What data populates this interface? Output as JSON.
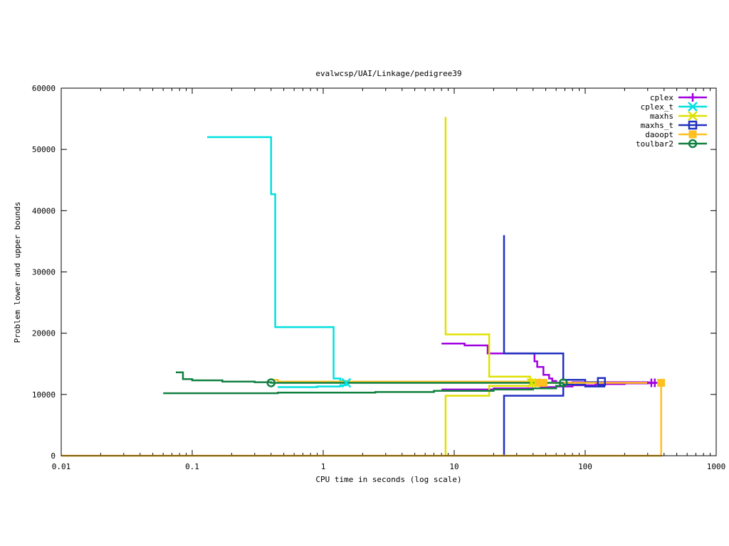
{
  "chart_data": {
    "type": "line",
    "title": "evalwcsp/UAI/Linkage/pedigree39",
    "xlabel": "CPU time in seconds (log scale)",
    "ylabel": "Problem lower and upper bounds",
    "x_scale": "log",
    "xlim": [
      0.01,
      1000
    ],
    "ylim": [
      0,
      60000
    ],
    "xticks": [
      {
        "value": 0.01,
        "label": "0.01"
      },
      {
        "value": 0.1,
        "label": "0.1"
      },
      {
        "value": 1,
        "label": "1"
      },
      {
        "value": 10,
        "label": "10"
      },
      {
        "value": 100,
        "label": "100"
      },
      {
        "value": 1000,
        "label": "1000"
      }
    ],
    "yticks": [
      {
        "value": 0,
        "label": "0"
      },
      {
        "value": 10000,
        "label": "10000"
      },
      {
        "value": 20000,
        "label": "20000"
      },
      {
        "value": 30000,
        "label": "30000"
      },
      {
        "value": 40000,
        "label": "40000"
      },
      {
        "value": 50000,
        "label": "50000"
      },
      {
        "value": 60000,
        "label": "60000"
      }
    ],
    "grid": false,
    "legend_position": "top-right",
    "series": [
      {
        "name": "cplex",
        "color": "#a000e0",
        "marker": "plus",
        "upper": [
          [
            8,
            18300
          ],
          [
            12,
            18300
          ],
          [
            12,
            18000
          ],
          [
            18,
            18000
          ],
          [
            18,
            16700
          ],
          [
            41,
            16700
          ],
          [
            41,
            15400
          ],
          [
            43,
            15400
          ],
          [
            43,
            14500
          ],
          [
            48,
            14500
          ],
          [
            48,
            13200
          ],
          [
            53,
            13200
          ],
          [
            53,
            12600
          ],
          [
            56,
            12600
          ],
          [
            56,
            12200
          ],
          [
            60,
            12200
          ],
          [
            60,
            11900
          ],
          [
            80,
            11900
          ],
          [
            80,
            12000
          ],
          [
            300,
            12000
          ],
          [
            330,
            11900
          ],
          [
            400,
            11900
          ]
        ],
        "lower": [
          [
            8,
            10800
          ],
          [
            20,
            10800
          ],
          [
            20,
            11000
          ],
          [
            45,
            11000
          ],
          [
            45,
            11200
          ],
          [
            60,
            11200
          ],
          [
            60,
            11300
          ],
          [
            80,
            11300
          ],
          [
            80,
            11500
          ],
          [
            120,
            11500
          ],
          [
            120,
            11700
          ],
          [
            200,
            11700
          ],
          [
            200,
            11800
          ],
          [
            300,
            11800
          ],
          [
            330,
            11900
          ],
          [
            400,
            11900
          ]
        ],
        "markers_at": [
          [
            320,
            11900
          ],
          [
            340,
            11900
          ]
        ]
      },
      {
        "name": "cplex_t",
        "color": "#00e0e0",
        "marker": "cross",
        "upper": [
          [
            0.13,
            52000
          ],
          [
            0.4,
            52000
          ],
          [
            0.4,
            42700
          ],
          [
            0.43,
            42700
          ],
          [
            0.43,
            21000
          ],
          [
            1.2,
            21000
          ],
          [
            1.2,
            12600
          ],
          [
            1.35,
            12600
          ],
          [
            1.35,
            12200
          ],
          [
            1.5,
            12200
          ],
          [
            1.5,
            11900
          ]
        ],
        "lower": [
          [
            0.45,
            11200
          ],
          [
            0.9,
            11200
          ],
          [
            0.9,
            11300
          ],
          [
            1.35,
            11300
          ],
          [
            1.35,
            11500
          ],
          [
            1.5,
            11500
          ],
          [
            1.5,
            11900
          ]
        ],
        "markers_at": [
          [
            1.5,
            11900
          ]
        ]
      },
      {
        "name": "maxhs",
        "color": "#e0e000",
        "marker": "cross",
        "upper": [
          [
            8.6,
            55300
          ],
          [
            8.6,
            19800
          ],
          [
            18.5,
            19800
          ],
          [
            18.5,
            12900
          ],
          [
            38,
            12900
          ],
          [
            38,
            12300
          ],
          [
            42,
            12300
          ],
          [
            42,
            11900
          ]
        ],
        "lower": [
          [
            8.6,
            0
          ],
          [
            8.6,
            9800
          ],
          [
            18.5,
            9800
          ],
          [
            18.5,
            11400
          ],
          [
            38,
            11400
          ],
          [
            38,
            11600
          ],
          [
            42,
            11600
          ],
          [
            42,
            11900
          ]
        ],
        "markers_at": [
          [
            39,
            11900
          ],
          [
            42,
            11900
          ]
        ]
      },
      {
        "name": "maxhs_t",
        "color": "#2030c0",
        "marker": "square",
        "upper": [
          [
            24,
            36000
          ],
          [
            24,
            16700
          ],
          [
            68,
            16700
          ],
          [
            68,
            12400
          ],
          [
            100,
            12400
          ],
          [
            100,
            12000
          ],
          [
            140,
            12000
          ],
          [
            140,
            11900
          ]
        ],
        "lower": [
          [
            24,
            0
          ],
          [
            24,
            9800
          ],
          [
            68,
            9800
          ],
          [
            68,
            11600
          ],
          [
            100,
            11600
          ],
          [
            100,
            11300
          ],
          [
            140,
            11300
          ],
          [
            140,
            11900
          ]
        ],
        "markers_at": [
          [
            133,
            12100
          ]
        ]
      },
      {
        "name": "daoopt",
        "color": "#ffc020",
        "marker": "filled-square",
        "upper": [
          [
            0.42,
            12400
          ],
          [
            0.45,
            12400
          ],
          [
            0.45,
            12100
          ],
          [
            48,
            12100
          ],
          [
            48,
            11900
          ],
          [
            380,
            11900
          ]
        ],
        "lower": [
          [
            0.01,
            0
          ],
          [
            380,
            0
          ],
          [
            380,
            11900
          ]
        ],
        "markers_at": [
          [
            45,
            11900
          ],
          [
            48,
            11900
          ],
          [
            380,
            11900
          ]
        ]
      },
      {
        "name": "toulbar2",
        "color": "#108040",
        "marker": "circle",
        "upper": [
          [
            0.075,
            13600
          ],
          [
            0.085,
            13600
          ],
          [
            0.085,
            12500
          ],
          [
            0.1,
            12500
          ],
          [
            0.1,
            12300
          ],
          [
            0.17,
            12300
          ],
          [
            0.17,
            12100
          ],
          [
            0.3,
            12100
          ],
          [
            0.3,
            12000
          ],
          [
            0.4,
            12000
          ],
          [
            0.4,
            11900
          ],
          [
            68,
            11900
          ]
        ],
        "lower": [
          [
            0.06,
            10200
          ],
          [
            0.45,
            10200
          ],
          [
            0.45,
            10300
          ],
          [
            2.5,
            10300
          ],
          [
            2.5,
            10400
          ],
          [
            7,
            10400
          ],
          [
            7,
            10600
          ],
          [
            20,
            10600
          ],
          [
            20,
            10800
          ],
          [
            40,
            10800
          ],
          [
            40,
            11000
          ],
          [
            60,
            11000
          ],
          [
            60,
            11400
          ],
          [
            68,
            11400
          ],
          [
            68,
            11900
          ]
        ],
        "markers_at": [
          [
            0.4,
            11900
          ],
          [
            68,
            11900
          ]
        ]
      }
    ]
  }
}
